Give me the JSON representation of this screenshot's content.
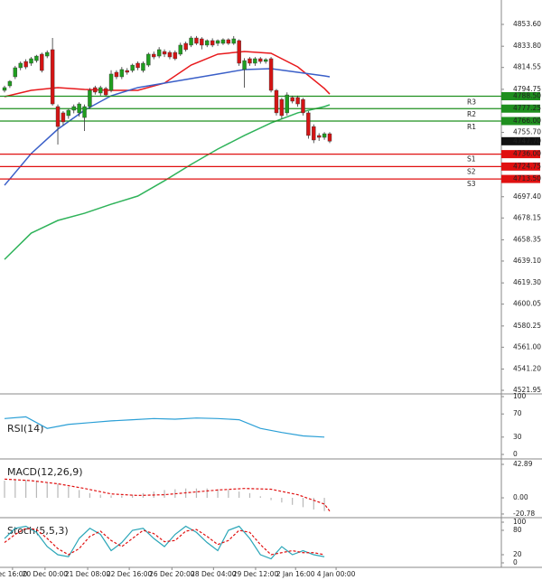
{
  "chart_data": [
    {
      "type": "candlestick",
      "xlim": [
        -0.85,
        93.2
      ],
      "xticks": [
        {
          "value": 1.5,
          "label": "ec 16:00"
        },
        {
          "value": 7.6,
          "label": "20 Dec 00:00"
        },
        {
          "value": 15.6,
          "label": "21 Dec 08:00"
        },
        {
          "value": 23.4,
          "label": "22 Dec 16:00"
        },
        {
          "value": 31.4,
          "label": "26 Dec 20:00"
        },
        {
          "value": 39.2,
          "label": "28 Dec 04:00"
        },
        {
          "value": 47.1,
          "label": "29 Dec 12:00"
        },
        {
          "value": 54.6,
          "label": "2 Jan 16:00"
        },
        {
          "value": 62.2,
          "label": "4 Jan 00:00"
        }
      ],
      "ylim": [
        4518.7,
        4875.7
      ],
      "yticks": [
        {
          "value": 4853.6,
          "label": "4853.60"
        },
        {
          "value": 4833.8,
          "label": "4833.80"
        },
        4814.55,
        4794.75,
        {
          "value": 4755.7,
          "label": "4755.70"
        },
        {
          "value": 4697.4,
          "label": "4697.40"
        },
        4678.15,
        4658.35,
        {
          "value": 4639.1,
          "label": "4639.10"
        },
        {
          "value": 4619.3,
          "label": "4619.30"
        },
        {
          "value": 4600.05,
          "label": "4600.05"
        },
        {
          "value": 4580.25,
          "label": "4580.25"
        },
        {
          "value": 4561.0,
          "label": "4561.00"
        },
        {
          "value": 4541.2,
          "label": "4541.20"
        },
        4521.95
      ],
      "up_color": "#1f9e1f",
      "down_color": "#d41414",
      "open": [
        4793.8,
        4797.9,
        4806.1,
        4814.3,
        4820,
        4818.4,
        4820.8,
        4826.6,
        4824.9,
        4830.7,
        4779.1,
        4773.4,
        4770.9,
        4775.8,
        4773.4,
        4769.2,
        4779.1,
        4796.3,
        4791.4,
        4795.5,
        4793.8,
        4810.2,
        4806.1,
        4811.8,
        4811.8,
        4818.4,
        4811.8,
        4816.7,
        4826.6,
        4824.9,
        4829.0,
        4828.2,
        4828.2,
        4826.6,
        4836.4,
        4834.8,
        4841.3,
        4840.5,
        4834.8,
        4838.9,
        4836.4,
        4836.4,
        4839.7,
        4836.4,
        4838.9,
        4812.7,
        4822.5,
        4818.4,
        4822.5,
        4820.0,
        4822.5,
        4793.8,
        4785.6,
        4773.4,
        4787.3,
        4787.3,
        4785.6,
        4773.4,
        4761.0,
        4752.9,
        4751.2,
        4754.5
      ],
      "high": [
        4798,
        4803,
        4816,
        4820,
        4822,
        4824,
        4826,
        4828,
        4830,
        4841.3,
        4781,
        4775,
        4777,
        4781,
        4783,
        4781,
        4796,
        4798,
        4798,
        4797,
        4812,
        4812,
        4815,
        4814,
        4818,
        4820,
        4820,
        4828,
        4829,
        4833,
        4831,
        4830,
        4830,
        4837,
        4838,
        4843,
        4843,
        4842,
        4840,
        4841,
        4840,
        4841,
        4841,
        4843,
        4840,
        4823,
        4824,
        4824,
        4824,
        4823,
        4824,
        4795,
        4787,
        4792,
        4789,
        4789,
        4787,
        4775,
        4763,
        4755,
        4756,
        4756
      ],
      "low": [
        4792,
        4796,
        4804,
        4812,
        4813,
        4816,
        4819,
        4810,
        4823,
        4780,
        4744.7,
        4762,
        4768,
        4773,
        4770,
        4757,
        4777,
        4790,
        4789,
        4788,
        4792,
        4804,
        4804,
        4808,
        4810,
        4812,
        4810,
        4815,
        4822,
        4823,
        4824,
        4822,
        4821,
        4825,
        4829,
        4833,
        4835,
        4831,
        4833,
        4833,
        4834,
        4835,
        4835,
        4835,
        4816,
        4796.3,
        4816,
        4816,
        4818,
        4818,
        4792,
        4771,
        4768,
        4771,
        4782,
        4779,
        4771,
        4750,
        4746,
        4748,
        4749,
        4746
      ],
      "close": [
        4796.3,
        4802.0,
        4814.3,
        4818.4,
        4815,
        4822.5,
        4824.9,
        4811.8,
        4828.2,
        4781.5,
        4761.0,
        4765.2,
        4775.8,
        4779.1,
        4781.5,
        4779.1,
        4793.8,
        4792.2,
        4796.3,
        4789.7,
        4808.6,
        4806.1,
        4812.7,
        4810.2,
        4816.7,
        4814.3,
        4818.4,
        4826.6,
        4824.1,
        4830.7,
        4826.6,
        4824.1,
        4822.5,
        4834.8,
        4830.7,
        4841.3,
        4836.4,
        4834.8,
        4838.9,
        4834.8,
        4838.9,
        4839.7,
        4836.4,
        4840.5,
        4818.4,
        4820.8,
        4818.4,
        4822.5,
        4820.0,
        4821.7,
        4793.8,
        4773.4,
        4770.9,
        4789.7,
        4784.0,
        4781.5,
        4773.4,
        4752.9,
        4748.8,
        4751.2,
        4754.5,
        4747.7
      ],
      "lines": [
        {
          "color": "#e8191c",
          "x": [
            0,
            5,
            10,
            15,
            20,
            25,
            30,
            35,
            40,
            45,
            50,
            55,
            60,
            61
          ],
          "values": [
            4788.1,
            4793.8,
            4796.3,
            4794.6,
            4793.8,
            4793.8,
            4800.4,
            4816.7,
            4826.6,
            4829.0,
            4827.4,
            4815.1,
            4795.5,
            4790.5
          ]
        },
        {
          "color": "#3a5fc8",
          "x": [
            0,
            5,
            10,
            15,
            20,
            25,
            30,
            35,
            40,
            45,
            50,
            55,
            60,
            61
          ],
          "values": [
            4707.8,
            4736.5,
            4758.6,
            4775.8,
            4788.9,
            4796.3,
            4800.4,
            4804.5,
            4808.6,
            4812.7,
            4813.5,
            4810.2,
            4806.9,
            4806.1
          ]
        },
        {
          "color": "#2fb35a",
          "x": [
            0,
            5,
            10,
            15,
            20,
            25,
            30,
            35,
            40,
            45,
            50,
            55,
            60,
            61
          ],
          "values": [
            4640.6,
            4664.4,
            4675.9,
            4682.4,
            4690.6,
            4698.0,
            4711.9,
            4726.7,
            4740.6,
            4752.9,
            4764.3,
            4773.4,
            4779.1,
            4780.7
          ]
        }
      ],
      "levels": {
        "names": [
          "R3",
          "R2",
          "R1",
          "S1",
          "S2",
          "S3"
        ],
        "values": [
          4788.5,
          4777.25,
          4766.0,
          4736.0,
          4724.75,
          4713.5
        ],
        "value_labels": [
          "4788.50",
          "4777.25",
          "4766.00",
          "4736.00",
          "4724.75",
          "4713.50"
        ],
        "colors": [
          "#1f8f1f",
          "#1f8f1f",
          "#1f8f1f",
          "#e01010",
          "#e01010",
          "#e01010"
        ]
      },
      "last": 4747.7,
      "last_label": "4747.70"
    },
    {
      "type": "line",
      "title": "RSI(14)",
      "ylim": [
        -6.25,
        104.7
      ],
      "yticks": [
        100,
        70,
        30,
        0
      ],
      "series": [
        {
          "color": "#2a9fd6",
          "x": [
            0,
            4,
            8,
            12,
            16,
            20,
            24,
            28,
            32,
            36,
            40,
            44,
            48,
            52,
            56,
            60
          ],
          "values": [
            62,
            65,
            45,
            52,
            55,
            58,
            60,
            62,
            61,
            63,
            62,
            60,
            45,
            38,
            32,
            30
          ]
        }
      ]
    },
    {
      "type": "macd",
      "title": "MACD(12,26,9)",
      "ylim": [
        -24.3,
        48.7
      ],
      "yticks": [
        42.89,
        {
          "value": 0,
          "label": "0.00"
        },
        -20.78
      ],
      "histogram": {
        "color": "#b8b8b8",
        "x": [
          0,
          2,
          4,
          6,
          8,
          10,
          12,
          14,
          16,
          18,
          20,
          22,
          24,
          26,
          28,
          30,
          32,
          34,
          36,
          38,
          40,
          42,
          44,
          46,
          48,
          50,
          52,
          54,
          56,
          58,
          60
        ],
        "values": [
          22,
          24,
          23,
          22,
          20,
          18,
          14,
          10,
          6,
          4,
          3,
          3,
          4,
          6,
          8,
          10,
          11,
          12,
          12,
          12,
          11,
          10,
          8,
          6,
          2,
          -3,
          -6,
          -9,
          -12,
          -15,
          -17
        ]
      },
      "signal": {
        "color": "#e01010",
        "x": [
          0,
          5,
          10,
          15,
          20,
          25,
          30,
          35,
          40,
          45,
          50,
          55,
          60,
          61
        ],
        "values": [
          24,
          22,
          18,
          12,
          5,
          3,
          4,
          7,
          10,
          12,
          11,
          4,
          -8,
          -17
        ]
      }
    },
    {
      "type": "line",
      "title": "Stoch(5,5,3)",
      "ylim": [
        -11.1,
        108.9
      ],
      "yticks": [
        100,
        80,
        20,
        0
      ],
      "series": [
        {
          "color": "#2aa6b8",
          "x": [
            0,
            2,
            4,
            6,
            8,
            10,
            12,
            14,
            16,
            18,
            20,
            22,
            24,
            26,
            28,
            30,
            32,
            34,
            36,
            38,
            40,
            42,
            44,
            46,
            48,
            50,
            52,
            54,
            56,
            58,
            60
          ],
          "values": [
            60,
            85,
            90,
            75,
            40,
            20,
            15,
            60,
            85,
            70,
            30,
            50,
            80,
            85,
            60,
            40,
            70,
            90,
            75,
            50,
            30,
            80,
            90,
            60,
            20,
            10,
            40,
            20,
            30,
            20,
            15
          ]
        },
        {
          "color": "#e01010",
          "dashed": true,
          "x": [
            0,
            2,
            4,
            6,
            8,
            10,
            12,
            14,
            16,
            18,
            20,
            22,
            24,
            26,
            28,
            30,
            32,
            34,
            36,
            38,
            40,
            42,
            44,
            46,
            48,
            50,
            52,
            54,
            56,
            58,
            60
          ],
          "values": [
            50,
            70,
            85,
            82,
            60,
            35,
            20,
            35,
            65,
            78,
            55,
            40,
            60,
            80,
            72,
            52,
            55,
            78,
            82,
            65,
            45,
            55,
            80,
            75,
            45,
            20,
            25,
            30,
            25,
            25,
            20
          ]
        }
      ]
    }
  ]
}
